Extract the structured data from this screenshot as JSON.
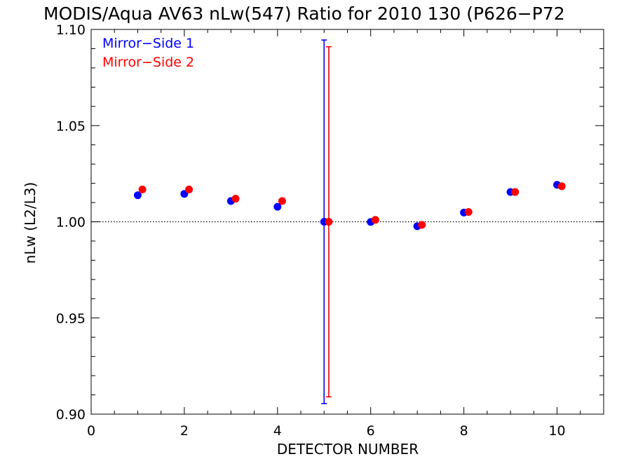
{
  "chart_data": {
    "type": "scatter",
    "title": "MODIS/Aqua AV63 nLw(547) Ratio for 2010 130 (P626−P72",
    "xlabel": "DETECTOR NUMBER",
    "ylabel": "nLw (L2/L3)",
    "xlim": [
      0,
      11
    ],
    "ylim": [
      0.9,
      1.1
    ],
    "xticks": [
      0,
      2,
      4,
      6,
      8,
      10
    ],
    "xtick_labels": [
      "0",
      "2",
      "4",
      "6",
      "8",
      "10"
    ],
    "yticks": [
      0.9,
      0.95,
      1.0,
      1.05,
      1.1
    ],
    "ytick_labels": [
      "0.90",
      "0.95",
      "1.00",
      "1.05",
      "1.10"
    ],
    "reference_line": 1.0,
    "legend_position": "top-left",
    "series": [
      {
        "name": "Mirror−Side 1",
        "color": "#0000ff",
        "x": [
          1,
          2,
          3,
          4,
          5,
          6,
          7,
          8,
          9,
          10
        ],
        "y": [
          1.0138,
          1.0145,
          1.0108,
          1.0078,
          1.0,
          0.9999,
          0.9977,
          1.0048,
          1.0155,
          1.0192
        ],
        "error_bar": {
          "x": 5,
          "low": 0.9055,
          "high": 1.0945
        }
      },
      {
        "name": "Mirror−Side 2",
        "color": "#ff0000",
        "x": [
          1.1,
          2.1,
          3.1,
          4.1,
          5.1,
          6.1,
          7.1,
          8.1,
          9.1,
          10.1
        ],
        "y": [
          1.0168,
          1.0168,
          1.012,
          1.0108,
          1.0,
          1.001,
          0.9984,
          1.0051,
          1.0155,
          1.0185
        ],
        "error_bar": {
          "x": 5.1,
          "low": 0.909,
          "high": 1.091
        }
      }
    ]
  }
}
